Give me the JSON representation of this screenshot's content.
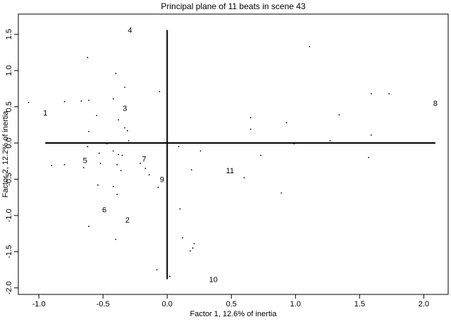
{
  "chart_data": {
    "type": "scatter",
    "title": "Principal plane of 11 beats in scene 43",
    "x_label": "Factor 1, 12.6% of inertia",
    "y_label": "Factor 2, 12.2% of inertia",
    "xlim": [
      -1.16,
      2.19
    ],
    "ylim": [
      -2.09,
      1.78
    ],
    "xticks": [
      {
        "value": -1,
        "label": "-1.0"
      },
      -0.5,
      {
        "value": 0,
        "label": "0.0"
      },
      0.5,
      {
        "value": 1,
        "label": "1.0"
      },
      1.5,
      {
        "value": 2,
        "label": "2.0"
      }
    ],
    "yticks": [
      {
        "value": -2,
        "label": "-2.0"
      },
      -1.5,
      {
        "value": -1,
        "label": "-1.0"
      },
      -0.5,
      {
        "value": 0,
        "label": "0.0"
      },
      0.5,
      {
        "value": 1,
        "label": "1.0"
      },
      1.5
    ],
    "color": "#000000",
    "series": [
      {
        "labels": [
          "1",
          "2",
          "3",
          "4",
          "5",
          "6",
          "7",
          "8",
          "9",
          "10",
          "11"
        ],
        "x": [
          -0.95,
          -0.31,
          -0.33,
          -0.29,
          -0.64,
          -0.49,
          -0.18,
          2.09,
          -0.04,
          0.36,
          0.49
        ],
        "y": [
          0.42,
          -1.06,
          0.48,
          1.56,
          -0.24,
          -0.92,
          -0.22,
          0.55,
          -0.5,
          -1.88,
          -0.38
        ]
      },
      {
        "x": [
          -1.08,
          -0.8,
          -0.67,
          -0.61,
          -0.62,
          -0.4,
          -0.42,
          -0.33,
          -0.55,
          -0.38,
          -0.33,
          -0.31,
          -0.61,
          -0.3,
          -0.47,
          -0.62,
          -0.42,
          -0.53,
          -0.38,
          -0.35,
          -0.52,
          -0.9,
          -0.8,
          -0.65,
          -0.39,
          -0.36,
          -0.21,
          -0.17,
          -0.14,
          -0.42,
          -0.54,
          -0.39,
          -0.07,
          -0.06,
          0.09,
          0.26,
          0.19,
          0.6,
          0.1,
          0.73,
          0.65,
          0.65,
          0.93,
          1.34,
          0.99,
          1.27,
          1.59,
          1.73,
          1.59,
          1.57,
          0.89,
          1.11,
          -0.61,
          -0.4,
          0.12,
          0.21,
          0.2,
          0.18,
          -0.08,
          0.02
        ],
        "y": [
          0.56,
          0.57,
          0.58,
          0.59,
          1.18,
          0.96,
          0.61,
          0.77,
          0.38,
          0.32,
          0.21,
          0.17,
          0.16,
          0.03,
          -0.01,
          -0.05,
          -0.11,
          -0.14,
          -0.16,
          -0.17,
          -0.28,
          -0.31,
          -0.3,
          -0.34,
          -0.3,
          -0.38,
          -0.28,
          -0.35,
          -0.44,
          -0.6,
          -0.58,
          -0.71,
          -0.61,
          0.71,
          -0.05,
          -0.11,
          -0.37,
          -0.48,
          -0.91,
          -0.17,
          0.35,
          0.19,
          0.28,
          0.39,
          -0.01,
          0.03,
          0.68,
          0.68,
          0.11,
          -0.2,
          -0.69,
          1.33,
          -1.15,
          -1.33,
          -1.31,
          -1.39,
          -1.45,
          -1.49,
          -1.75,
          -1.84
        ]
      }
    ]
  }
}
